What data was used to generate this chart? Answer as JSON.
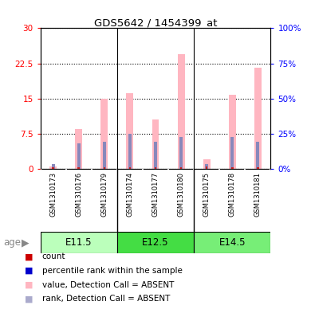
{
  "title": "GDS5642 / 1454399_at",
  "samples": [
    "GSM1310173",
    "GSM1310176",
    "GSM1310179",
    "GSM1310174",
    "GSM1310177",
    "GSM1310180",
    "GSM1310175",
    "GSM1310178",
    "GSM1310181"
  ],
  "pink_values": [
    0.5,
    8.5,
    15.0,
    16.2,
    10.5,
    24.5,
    2.0,
    15.8,
    21.5
  ],
  "blue_rank_pct": [
    3.3,
    18.3,
    19.3,
    25.0,
    19.3,
    22.7,
    3.3,
    22.7,
    19.3
  ],
  "red_count": [
    0.3,
    0.3,
    0.3,
    0.3,
    0.3,
    0.3,
    0.5,
    0.3,
    0.3
  ],
  "pink_color": "#FFB6C1",
  "blue_color": "#8888BB",
  "red_color": "#CC2222",
  "ylim_left": [
    0,
    30
  ],
  "ylim_right": [
    0,
    100
  ],
  "yticks_left": [
    0,
    7.5,
    15,
    22.5,
    30
  ],
  "ytick_labels_left": [
    "0",
    "7.5",
    "15",
    "22.5",
    "30"
  ],
  "yticks_right": [
    0,
    25,
    50,
    75,
    100
  ],
  "ytick_labels_right": [
    "0%",
    "25%",
    "50%",
    "75%",
    "100%"
  ],
  "group_data": [
    {
      "start": 0,
      "end": 2,
      "label": "E11.5",
      "color": "#AAFFAA"
    },
    {
      "start": 3,
      "end": 5,
      "label": "E12.5",
      "color": "#44DD44"
    },
    {
      "start": 6,
      "end": 8,
      "label": "E14.5",
      "color": "#66EE66"
    }
  ],
  "legend_items": [
    {
      "color": "#CC0000",
      "label": "count"
    },
    {
      "color": "#0000CC",
      "label": "percentile rank within the sample"
    },
    {
      "color": "#FFB6C1",
      "label": "value, Detection Call = ABSENT"
    },
    {
      "color": "#AAAACC",
      "label": "rank, Detection Call = ABSENT"
    }
  ],
  "bar_width": 0.25,
  "pink_bar_width": 0.28
}
